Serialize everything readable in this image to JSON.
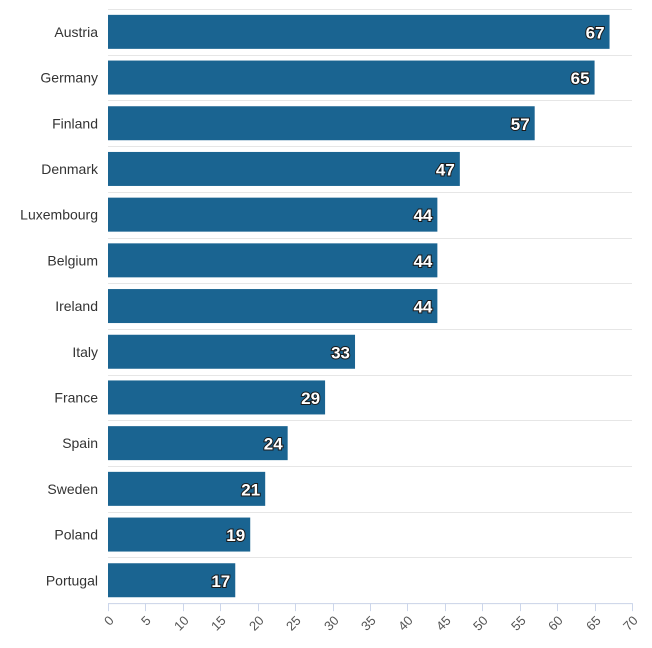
{
  "chart_data": {
    "type": "bar",
    "orientation": "horizontal",
    "title": "",
    "xlabel": "",
    "ylabel": "",
    "categories": [
      "Austria",
      "Germany",
      "Finland",
      "Denmark",
      "Luxembourg",
      "Belgium",
      "Ireland",
      "Italy",
      "France",
      "Spain",
      "Sweden",
      "Poland",
      "Portugal"
    ],
    "values": [
      67,
      65,
      57,
      47,
      44,
      44,
      44,
      33,
      29,
      24,
      21,
      19,
      17
    ],
    "xlim": [
      0,
      70
    ],
    "x_ticks": [
      0,
      5,
      10,
      15,
      20,
      25,
      30,
      35,
      40,
      45,
      50,
      55,
      60,
      65,
      70
    ],
    "grid": true,
    "data_labels": true,
    "colors": {
      "bar": "#1a6491",
      "grid": "#e6e6e6",
      "axis": "#ccd6eb",
      "label_text": "#ffffff"
    }
  }
}
